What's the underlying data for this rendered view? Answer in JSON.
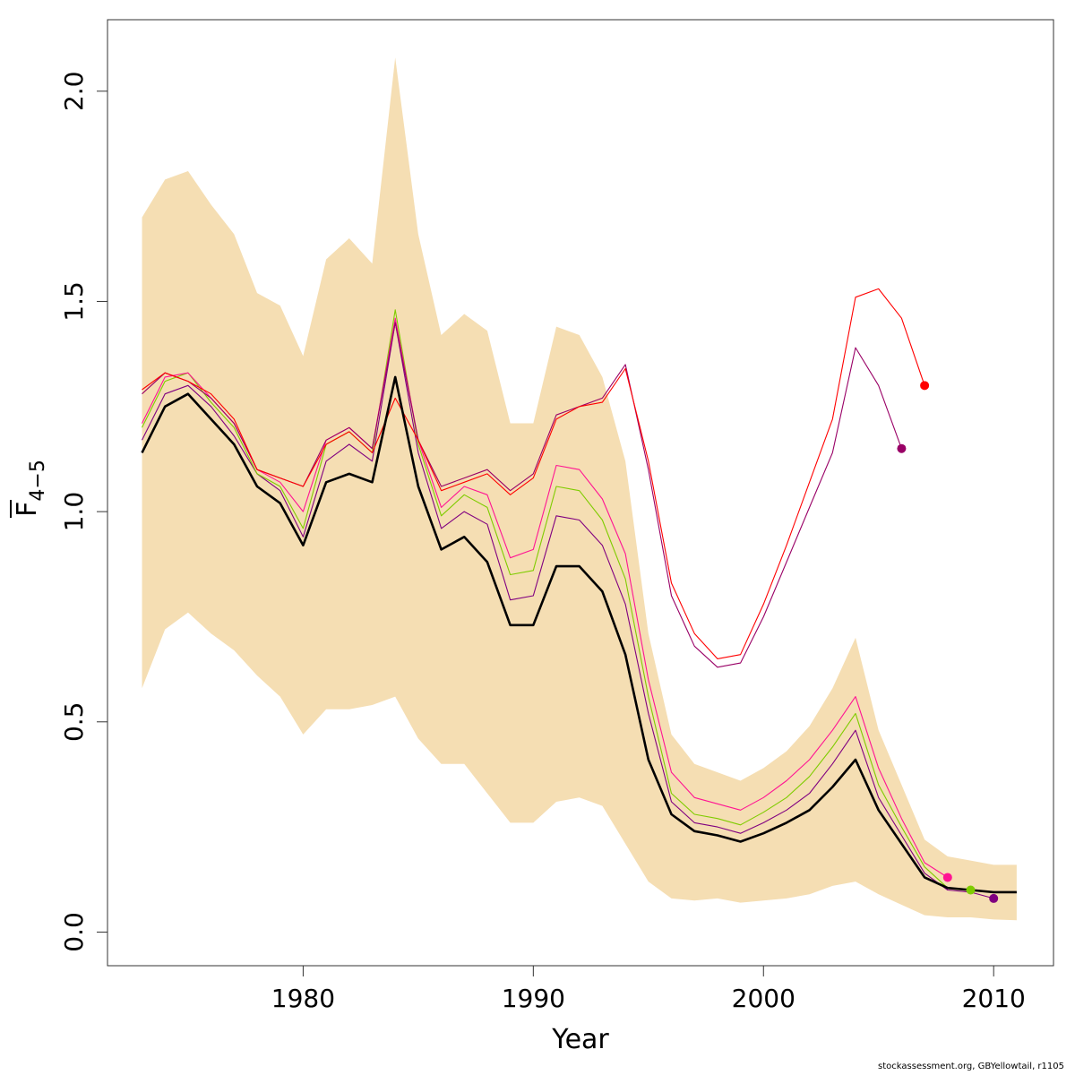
{
  "chart_data": {
    "type": "line",
    "title": "",
    "xlabel": "Year",
    "ylabel_main": "F",
    "ylabel_sub": "4−5",
    "xlim": [
      1971.5,
      2012.6
    ],
    "ylim": [
      -0.08,
      2.17
    ],
    "x_ticks": [
      1980,
      1990,
      2000,
      2010
    ],
    "y_ticks": [
      0.0,
      0.5,
      1.0,
      1.5,
      2.0
    ],
    "y_tick_labels": [
      "0.0",
      "0.5",
      "1.0",
      "1.5",
      "2.0"
    ],
    "x_tick_labels": [
      "1980",
      "1990",
      "2000",
      "2010"
    ],
    "grid": false,
    "band": {
      "color": "#F5DEB3",
      "x": [
        1973,
        1974,
        1975,
        1976,
        1977,
        1978,
        1979,
        1980,
        1981,
        1982,
        1983,
        1984,
        1985,
        1986,
        1987,
        1988,
        1989,
        1990,
        1991,
        1992,
        1993,
        1994,
        1995,
        1996,
        1997,
        1998,
        1999,
        2000,
        2001,
        2002,
        2003,
        2004,
        2005,
        2006,
        2007,
        2008,
        2009,
        2010,
        2011
      ],
      "upper": [
        1.7,
        1.79,
        1.81,
        1.73,
        1.66,
        1.52,
        1.49,
        1.37,
        1.6,
        1.65,
        1.59,
        2.08,
        1.66,
        1.42,
        1.47,
        1.43,
        1.21,
        1.21,
        1.44,
        1.42,
        1.32,
        1.12,
        0.71,
        0.47,
        0.4,
        0.38,
        0.36,
        0.39,
        0.43,
        0.49,
        0.58,
        0.7,
        0.48,
        0.35,
        0.22,
        0.18,
        0.17,
        0.16,
        0.16
      ],
      "lower": [
        0.58,
        0.72,
        0.76,
        0.71,
        0.67,
        0.61,
        0.56,
        0.47,
        0.53,
        0.53,
        0.54,
        0.56,
        0.46,
        0.4,
        0.4,
        0.33,
        0.26,
        0.26,
        0.31,
        0.32,
        0.3,
        0.21,
        0.12,
        0.08,
        0.075,
        0.08,
        0.07,
        0.075,
        0.08,
        0.09,
        0.11,
        0.12,
        0.09,
        0.065,
        0.04,
        0.035,
        0.035,
        0.03,
        0.028
      ]
    },
    "series": [
      {
        "color": "#000000",
        "width": 2.6,
        "x": [
          1973,
          1974,
          1975,
          1976,
          1977,
          1978,
          1979,
          1980,
          1981,
          1982,
          1983,
          1984,
          1985,
          1986,
          1987,
          1988,
          1989,
          1990,
          1991,
          1992,
          1993,
          1994,
          1995,
          1996,
          1997,
          1998,
          1999,
          2000,
          2001,
          2002,
          2003,
          2004,
          2005,
          2006,
          2007,
          2008,
          2009,
          2010,
          2011
        ],
        "y": [
          1.14,
          1.25,
          1.28,
          1.22,
          1.16,
          1.06,
          1.02,
          0.92,
          1.07,
          1.09,
          1.07,
          1.32,
          1.06,
          0.91,
          0.94,
          0.88,
          0.73,
          0.73,
          0.87,
          0.87,
          0.81,
          0.66,
          0.41,
          0.28,
          0.24,
          0.23,
          0.215,
          0.235,
          0.26,
          0.29,
          0.345,
          0.41,
          0.29,
          0.21,
          0.13,
          0.105,
          0.1,
          0.095,
          0.095
        ]
      },
      {
        "color": "#800080",
        "width": 1.1,
        "x": [
          1973,
          1974,
          1975,
          1976,
          1977,
          1978,
          1979,
          1980,
          1981,
          1982,
          1983,
          1984,
          1985,
          1986,
          1987,
          1988,
          1989,
          1990,
          1991,
          1992,
          1993,
          1994,
          1995,
          1996,
          1997,
          1998,
          1999,
          2000,
          2001,
          2002,
          2003,
          2004,
          2005,
          2006,
          2007,
          2008,
          2009,
          2010
        ],
        "y": [
          1.17,
          1.28,
          1.3,
          1.25,
          1.18,
          1.09,
          1.05,
          0.94,
          1.12,
          1.16,
          1.12,
          1.45,
          1.14,
          0.96,
          1.0,
          0.97,
          0.79,
          0.8,
          0.99,
          0.98,
          0.92,
          0.78,
          0.52,
          0.31,
          0.26,
          0.25,
          0.235,
          0.26,
          0.29,
          0.33,
          0.4,
          0.48,
          0.32,
          0.23,
          0.14,
          0.1,
          0.095,
          0.08
        ],
        "end_point": [
          2010,
          0.08
        ]
      },
      {
        "color": "#7FCC00",
        "width": 1.1,
        "x": [
          1973,
          1974,
          1975,
          1976,
          1977,
          1978,
          1979,
          1980,
          1981,
          1982,
          1983,
          1984,
          1985,
          1986,
          1987,
          1988,
          1989,
          1990,
          1991,
          1992,
          1993,
          1994,
          1995,
          1996,
          1997,
          1998,
          1999,
          2000,
          2001,
          2002,
          2003,
          2004,
          2005,
          2006,
          2007,
          2008,
          2009
        ],
        "y": [
          1.2,
          1.31,
          1.33,
          1.26,
          1.2,
          1.09,
          1.06,
          0.96,
          1.16,
          1.19,
          1.14,
          1.48,
          1.16,
          0.99,
          1.04,
          1.01,
          0.85,
          0.86,
          1.06,
          1.05,
          0.98,
          0.84,
          0.56,
          0.33,
          0.28,
          0.27,
          0.255,
          0.285,
          0.32,
          0.37,
          0.44,
          0.52,
          0.35,
          0.25,
          0.155,
          0.105,
          0.1
        ],
        "end_point": [
          2009,
          0.1
        ]
      },
      {
        "color": "#FF1493",
        "width": 1.1,
        "x": [
          1973,
          1974,
          1975,
          1976,
          1977,
          1978,
          1979,
          1980,
          1981,
          1982,
          1983,
          1984,
          1985,
          1986,
          1987,
          1988,
          1989,
          1990,
          1991,
          1992,
          1993,
          1994,
          1995,
          1996,
          1997,
          1998,
          1999,
          2000,
          2001,
          2002,
          2003,
          2004,
          2005,
          2006,
          2007,
          2008
        ],
        "y": [
          1.21,
          1.32,
          1.33,
          1.27,
          1.21,
          1.1,
          1.07,
          1.0,
          1.17,
          1.2,
          1.15,
          1.46,
          1.17,
          1.01,
          1.06,
          1.04,
          0.89,
          0.91,
          1.11,
          1.1,
          1.03,
          0.9,
          0.6,
          0.38,
          0.32,
          0.305,
          0.29,
          0.32,
          0.36,
          0.41,
          0.48,
          0.56,
          0.39,
          0.27,
          0.165,
          0.13
        ],
        "end_point": [
          2008,
          0.13
        ]
      },
      {
        "color": "#990066",
        "width": 1.1,
        "x": [
          1973,
          1974,
          1975,
          1976,
          1977,
          1978,
          1979,
          1980,
          1981,
          1982,
          1983,
          1984,
          1985,
          1986,
          1987,
          1988,
          1989,
          1990,
          1991,
          1992,
          1993,
          1994,
          1995,
          1996,
          1997,
          1998,
          1999,
          2000,
          2001,
          2002,
          2003,
          2004,
          2005,
          2006
        ],
        "y": [
          1.28,
          1.33,
          1.31,
          1.27,
          1.21,
          1.1,
          1.08,
          1.06,
          1.17,
          1.2,
          1.15,
          1.45,
          1.17,
          1.06,
          1.08,
          1.1,
          1.05,
          1.09,
          1.23,
          1.25,
          1.27,
          1.35,
          1.1,
          0.8,
          0.68,
          0.63,
          0.64,
          0.75,
          0.88,
          1.01,
          1.14,
          1.39,
          1.3,
          1.15
        ],
        "end_point": [
          2006,
          1.15
        ]
      },
      {
        "color": "#FF0000",
        "width": 1.1,
        "x": [
          1973,
          1974,
          1975,
          1976,
          1977,
          1978,
          1979,
          1980,
          1981,
          1982,
          1983,
          1984,
          1985,
          1986,
          1987,
          1988,
          1989,
          1990,
          1991,
          1992,
          1993,
          1994,
          1995,
          1996,
          1997,
          1998,
          1999,
          2000,
          2001,
          2002,
          2003,
          2004,
          2005,
          2006,
          2007
        ],
        "y": [
          1.29,
          1.33,
          1.31,
          1.28,
          1.22,
          1.1,
          1.08,
          1.06,
          1.16,
          1.19,
          1.14,
          1.27,
          1.17,
          1.05,
          1.07,
          1.09,
          1.04,
          1.08,
          1.22,
          1.25,
          1.26,
          1.34,
          1.12,
          0.83,
          0.71,
          0.65,
          0.66,
          0.78,
          0.92,
          1.07,
          1.22,
          1.51,
          1.53,
          1.46,
          1.3
        ],
        "end_point": [
          2007,
          1.3
        ]
      }
    ]
  },
  "credit": "stockassessment.org, GBYellowtail, r1105"
}
